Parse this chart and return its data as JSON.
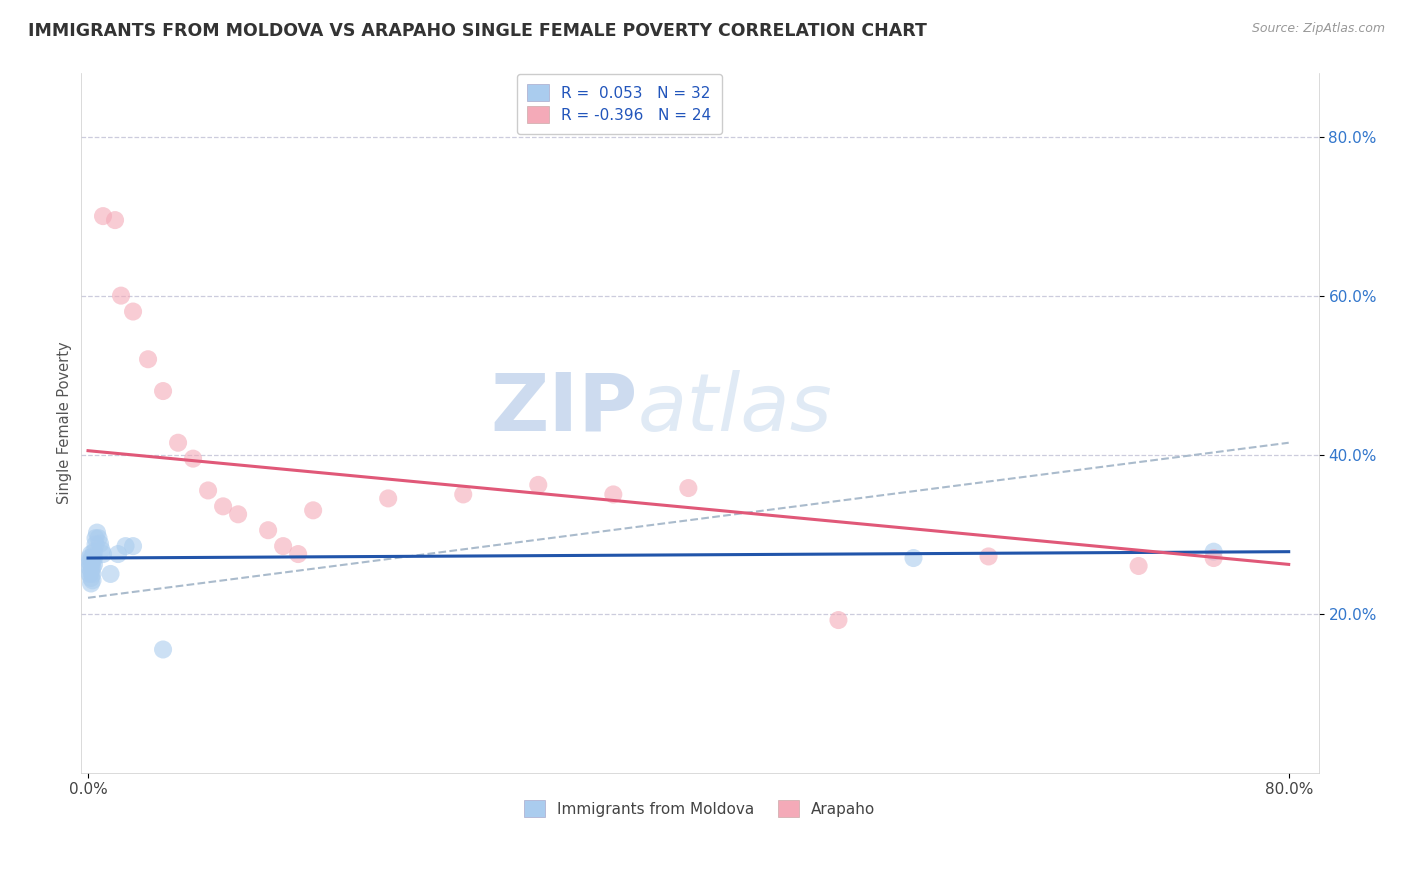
{
  "title": "IMMIGRANTS FROM MOLDOVA VS ARAPAHO SINGLE FEMALE POVERTY CORRELATION CHART",
  "source": "Source: ZipAtlas.com",
  "ylabel": "Single Female Poverty",
  "legend_r1": "R =  0.053   N = 32",
  "legend_r2": "R = -0.396   N = 24",
  "legend_label1": "Immigrants from Moldova",
  "legend_label2": "Arapaho",
  "watermark_zip": "ZIP",
  "watermark_atlas": "atlas",
  "blue_scatter": [
    [
      0.001,
      0.27
    ],
    [
      0.001,
      0.265
    ],
    [
      0.001,
      0.258
    ],
    [
      0.001,
      0.25
    ],
    [
      0.002,
      0.275
    ],
    [
      0.002,
      0.268
    ],
    [
      0.002,
      0.26
    ],
    [
      0.002,
      0.252
    ],
    [
      0.002,
      0.245
    ],
    [
      0.002,
      0.238
    ],
    [
      0.003,
      0.272
    ],
    [
      0.003,
      0.265
    ],
    [
      0.003,
      0.258
    ],
    [
      0.003,
      0.25
    ],
    [
      0.003,
      0.242
    ],
    [
      0.004,
      0.278
    ],
    [
      0.004,
      0.27
    ],
    [
      0.004,
      0.262
    ],
    [
      0.005,
      0.295
    ],
    [
      0.005,
      0.287
    ],
    [
      0.006,
      0.302
    ],
    [
      0.007,
      0.295
    ],
    [
      0.008,
      0.288
    ],
    [
      0.009,
      0.28
    ],
    [
      0.01,
      0.275
    ],
    [
      0.015,
      0.25
    ],
    [
      0.02,
      0.275
    ],
    [
      0.025,
      0.285
    ],
    [
      0.03,
      0.285
    ],
    [
      0.05,
      0.155
    ],
    [
      0.55,
      0.27
    ],
    [
      0.75,
      0.278
    ]
  ],
  "pink_scatter": [
    [
      0.01,
      0.7
    ],
    [
      0.018,
      0.695
    ],
    [
      0.022,
      0.6
    ],
    [
      0.03,
      0.58
    ],
    [
      0.04,
      0.52
    ],
    [
      0.05,
      0.48
    ],
    [
      0.06,
      0.415
    ],
    [
      0.07,
      0.395
    ],
    [
      0.08,
      0.355
    ],
    [
      0.09,
      0.335
    ],
    [
      0.1,
      0.325
    ],
    [
      0.12,
      0.305
    ],
    [
      0.13,
      0.285
    ],
    [
      0.14,
      0.275
    ],
    [
      0.15,
      0.33
    ],
    [
      0.2,
      0.345
    ],
    [
      0.25,
      0.35
    ],
    [
      0.3,
      0.362
    ],
    [
      0.35,
      0.35
    ],
    [
      0.4,
      0.358
    ],
    [
      0.5,
      0.192
    ],
    [
      0.6,
      0.272
    ],
    [
      0.7,
      0.26
    ],
    [
      0.75,
      0.27
    ]
  ],
  "blue_line": [
    [
      0.0,
      0.27
    ],
    [
      0.8,
      0.278
    ]
  ],
  "pink_line": [
    [
      0.0,
      0.405
    ],
    [
      0.8,
      0.262
    ]
  ],
  "gray_dash_line": [
    [
      0.0,
      0.22
    ],
    [
      0.8,
      0.415
    ]
  ],
  "ylim": [
    0.0,
    0.88
  ],
  "xlim": [
    -0.005,
    0.82
  ],
  "yticks": [
    0.2,
    0.4,
    0.6,
    0.8
  ],
  "ytick_labels": [
    "20.0%",
    "40.0%",
    "60.0%",
    "80.0%"
  ],
  "xticks": [
    0.0,
    0.8
  ],
  "xtick_labels": [
    "0.0%",
    "80.0%"
  ],
  "blue_color": "#aaccee",
  "pink_color": "#f4aab8",
  "blue_line_color": "#2255aa",
  "pink_line_color": "#e05878",
  "dash_color": "#aabbcc",
  "grid_color": "#ccccdd",
  "bg_color": "#ffffff",
  "title_color": "#333333",
  "source_color": "#999999",
  "title_fontsize": 12.5,
  "marker_size": 13,
  "alpha": 0.6
}
